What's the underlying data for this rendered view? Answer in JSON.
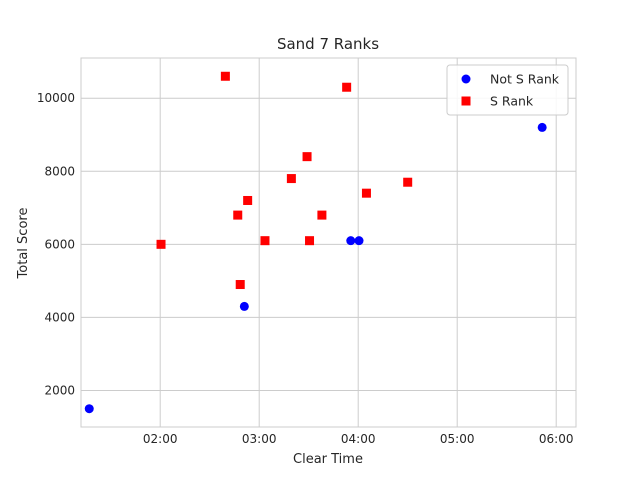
{
  "chart_data": {
    "type": "scatter",
    "title": "Sand 7 Ranks",
    "xlabel": "Clear Time",
    "ylabel": "Total Score",
    "x_unit": "minutes",
    "xlim": [
      72,
      372
    ],
    "ylim": [
      1000,
      11100
    ],
    "x_ticks": [
      {
        "value": 120,
        "label": "02:00"
      },
      {
        "value": 180,
        "label": "03:00"
      },
      {
        "value": 240,
        "label": "04:00"
      },
      {
        "value": 300,
        "label": "05:00"
      },
      {
        "value": 360,
        "label": "06:00"
      }
    ],
    "y_ticks": [
      {
        "value": 2000,
        "label": "2000"
      },
      {
        "value": 4000,
        "label": "4000"
      },
      {
        "value": 6000,
        "label": "6000"
      },
      {
        "value": 8000,
        "label": "8000"
      },
      {
        "value": 10000,
        "label": "10000"
      }
    ],
    "grid": true,
    "legend_position": "top-right",
    "series": [
      {
        "name": "Not S Rank",
        "color": "#0000ff",
        "marker": "circle",
        "points": [
          {
            "x": 77,
            "y": 1500
          },
          {
            "x": 171,
            "y": 4300
          },
          {
            "x": 235.5,
            "y": 6100
          },
          {
            "x": 240.5,
            "y": 6100
          },
          {
            "x": 351.5,
            "y": 9200
          }
        ]
      },
      {
        "name": "S Rank",
        "color": "#ff0000",
        "marker": "square",
        "points": [
          {
            "x": 120.5,
            "y": 6000
          },
          {
            "x": 159.5,
            "y": 10600
          },
          {
            "x": 167,
            "y": 6800
          },
          {
            "x": 168.5,
            "y": 4900
          },
          {
            "x": 173,
            "y": 7200
          },
          {
            "x": 183.5,
            "y": 6100
          },
          {
            "x": 199.5,
            "y": 7800
          },
          {
            "x": 209,
            "y": 8400
          },
          {
            "x": 210.5,
            "y": 6100
          },
          {
            "x": 218,
            "y": 6800
          },
          {
            "x": 233,
            "y": 10300
          },
          {
            "x": 245,
            "y": 7400
          },
          {
            "x": 270,
            "y": 7700
          }
        ]
      }
    ]
  }
}
